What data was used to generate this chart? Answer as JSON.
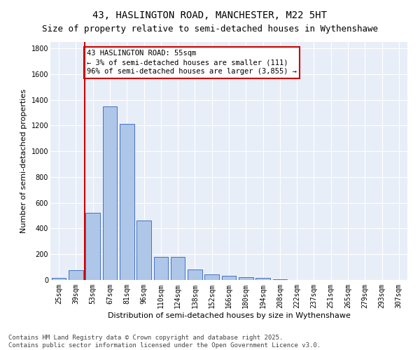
{
  "title": "43, HASLINGTON ROAD, MANCHESTER, M22 5HT",
  "subtitle": "Size of property relative to semi-detached houses in Wythenshawe",
  "xlabel": "Distribution of semi-detached houses by size in Wythenshawe",
  "ylabel": "Number of semi-detached properties",
  "categories": [
    "25sqm",
    "39sqm",
    "53sqm",
    "67sqm",
    "81sqm",
    "96sqm",
    "110sqm",
    "124sqm",
    "138sqm",
    "152sqm",
    "166sqm",
    "180sqm",
    "194sqm",
    "208sqm",
    "222sqm",
    "237sqm",
    "251sqm",
    "265sqm",
    "279sqm",
    "293sqm",
    "307sqm"
  ],
  "values": [
    15,
    75,
    525,
    1350,
    1215,
    465,
    180,
    180,
    80,
    45,
    30,
    20,
    15,
    5,
    2,
    1,
    1,
    0,
    0,
    0,
    0
  ],
  "bar_color": "#aec6e8",
  "bar_edge_color": "#4472c4",
  "vline_index": 1.5,
  "annotation_title": "43 HASLINGTON ROAD: 55sqm",
  "annotation_line1": "← 3% of semi-detached houses are smaller (111)",
  "annotation_line2": "96% of semi-detached houses are larger (3,855) →",
  "annotation_box_color": "#ffffff",
  "annotation_box_edge": "#cc0000",
  "vline_color": "#cc0000",
  "ylim": [
    0,
    1850
  ],
  "yticks": [
    0,
    200,
    400,
    600,
    800,
    1000,
    1200,
    1400,
    1600,
    1800
  ],
  "bg_color": "#e8eef8",
  "footer1": "Contains HM Land Registry data © Crown copyright and database right 2025.",
  "footer2": "Contains public sector information licensed under the Open Government Licence v3.0.",
  "title_fontsize": 10,
  "subtitle_fontsize": 9,
  "axis_label_fontsize": 8,
  "tick_fontsize": 7,
  "annotation_fontsize": 7.5,
  "footer_fontsize": 6.5
}
